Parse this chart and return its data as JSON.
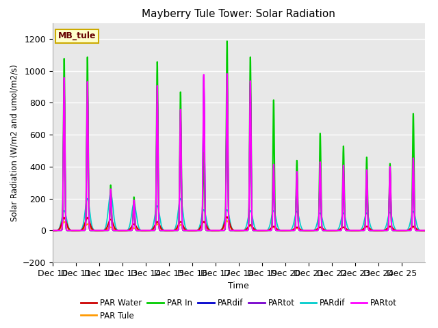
{
  "title": "Mayberry Tule Tower: Solar Radiation",
  "xlabel": "Time",
  "ylabel": "Solar Radiation (W/m2 and umol/m2/s)",
  "ylim": [
    -200,
    1300
  ],
  "background_color": "#ffffff",
  "plot_bg_color": "#e8e8e8",
  "grid_color": "#ffffff",
  "annotation_text": "MB_tule",
  "annotation_box_color": "#ffffcc",
  "annotation_border_color": "#ccaa00",
  "xtick_labels": [
    "Dec 10",
    "Dec 11",
    "Dec 12",
    "Dec 13",
    "Dec 14",
    "Dec 15",
    "Dec 16",
    "Dec 17",
    "Dec 18",
    "Dec 19",
    "Dec 20",
    "Dec 21",
    "Dec 22",
    "Dec 23",
    "Dec 24",
    "Dec 25"
  ],
  "day_peaks": {
    "green": [
      1080,
      1090,
      285,
      210,
      1060,
      870,
      490,
      1190,
      1090,
      820,
      440,
      610,
      530,
      460,
      420,
      735
    ],
    "magenta": [
      960,
      935,
      260,
      190,
      910,
      760,
      980,
      985,
      940,
      415,
      370,
      430,
      410,
      380,
      400,
      455
    ],
    "red": [
      80,
      80,
      70,
      40,
      55,
      55,
      55,
      85,
      35,
      25,
      20,
      20,
      20,
      25,
      25,
      25
    ],
    "orange": [
      55,
      40,
      20,
      15,
      40,
      35,
      55,
      60,
      30,
      20,
      15,
      20,
      20,
      25,
      25,
      20
    ],
    "blue": [
      950,
      940,
      240,
      185,
      900,
      755,
      970,
      970,
      930,
      405,
      360,
      415,
      395,
      370,
      390,
      445
    ],
    "purple": [
      950,
      935,
      240,
      185,
      900,
      755,
      975,
      975,
      935,
      410,
      365,
      420,
      400,
      375,
      395,
      450
    ],
    "cyan": [
      125,
      200,
      235,
      170,
      155,
      200,
      130,
      130,
      125,
      125,
      120,
      110,
      110,
      110,
      115,
      120
    ]
  },
  "n_days": 16,
  "pts_per_day": 200,
  "sigma_narrow": 0.03,
  "sigma_wide": 0.1
}
